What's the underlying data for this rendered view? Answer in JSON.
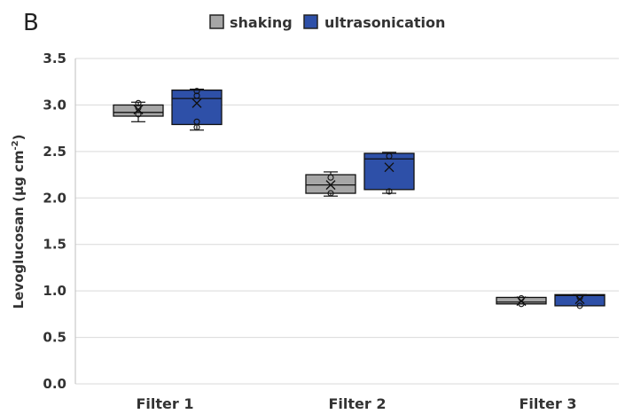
{
  "panel_label": "B",
  "chart_data": {
    "type": "box",
    "categories": [
      "Filter 1",
      "Filter 2",
      "Filter 3"
    ],
    "ylabel_main": "Levoglucosan (µg cm",
    "ylabel_sup": "-2",
    "ylabel_close": ")",
    "ylim": [
      0,
      3.5
    ],
    "yticks": [
      "0.0",
      "0.5",
      "1.0",
      "1.5",
      "2.0",
      "2.5",
      "3.0",
      "3.5"
    ],
    "grid": true,
    "legend_position": "top",
    "series": [
      {
        "name": "shaking",
        "color": "#a6a6a6",
        "boxes": [
          {
            "min": 2.82,
            "q1": 2.88,
            "median": 2.92,
            "q3": 3.0,
            "max": 3.03,
            "mean": 2.95,
            "points": [
              2.9,
              2.97,
              3.02
            ]
          },
          {
            "min": 2.02,
            "q1": 2.05,
            "median": 2.14,
            "q3": 2.25,
            "max": 2.28,
            "mean": 2.14,
            "points": [
              2.05,
              2.22
            ]
          },
          {
            "min": 0.86,
            "q1": 0.86,
            "median": 0.88,
            "q3": 0.93,
            "max": 0.93,
            "mean": 0.89,
            "points": [
              0.86,
              0.92
            ]
          }
        ]
      },
      {
        "name": "ultrasonication",
        "color": "#2e50a8",
        "boxes": [
          {
            "min": 2.73,
            "q1": 2.79,
            "median": 3.07,
            "q3": 3.16,
            "max": 3.17,
            "mean": 3.02,
            "points": [
              2.76,
              2.82,
              3.1,
              3.15
            ]
          },
          {
            "min": 2.05,
            "q1": 2.09,
            "median": 2.42,
            "q3": 2.48,
            "max": 2.49,
            "mean": 2.33,
            "points": [
              2.07,
              2.45
            ]
          },
          {
            "min": 0.84,
            "q1": 0.84,
            "median": 0.95,
            "q3": 0.96,
            "max": 0.96,
            "mean": 0.91,
            "points": [
              0.84,
              0.93
            ]
          }
        ]
      }
    ]
  }
}
